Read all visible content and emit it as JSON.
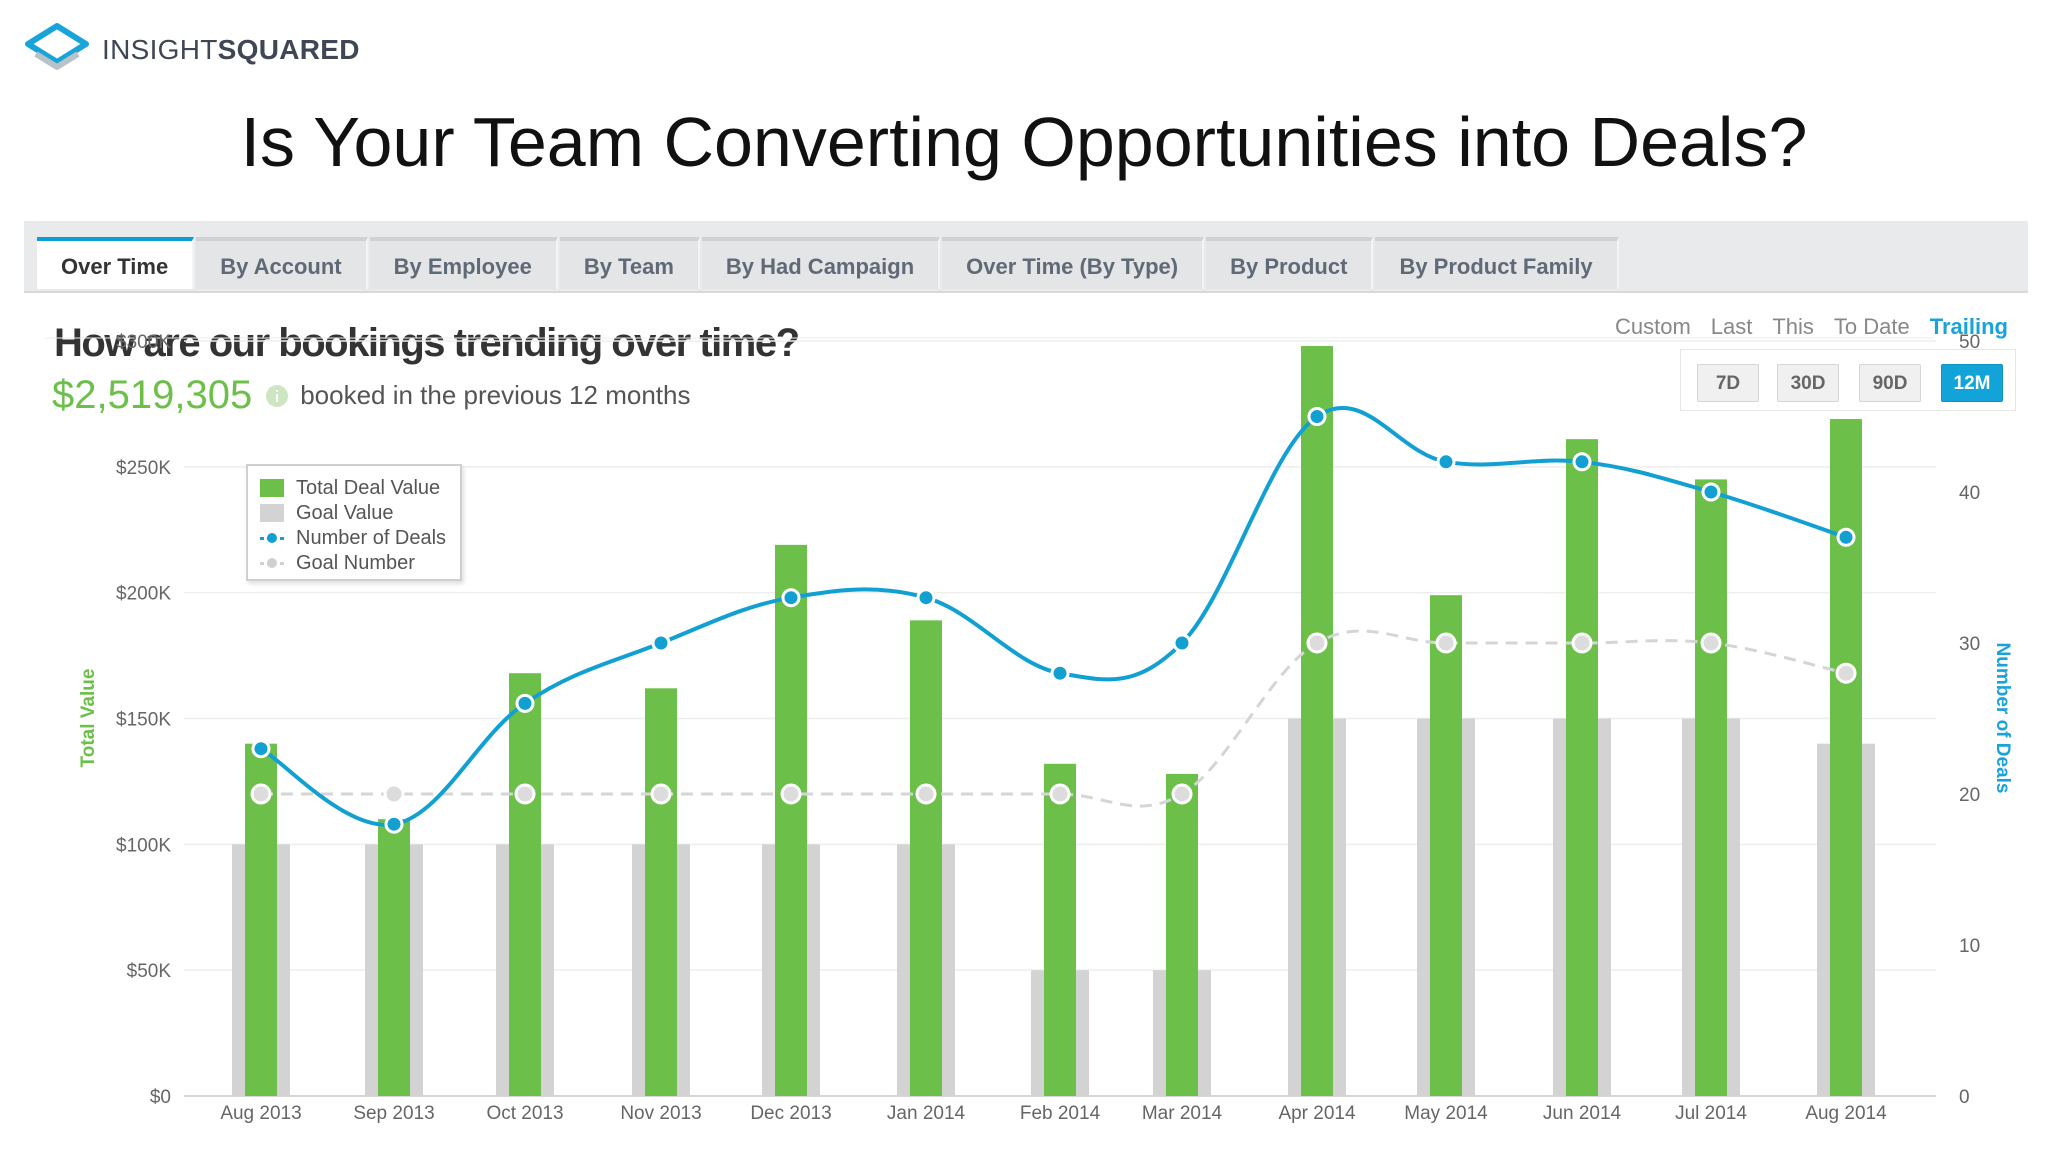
{
  "logo": {
    "text_light": "INSIGHT",
    "text_bold": "SQUARED"
  },
  "slide_title": "Is Your Team Converting Opportunities into Deals?",
  "tabs": [
    {
      "label": "Over Time",
      "active": true
    },
    {
      "label": "By Account"
    },
    {
      "label": "By Employee"
    },
    {
      "label": "By Team"
    },
    {
      "label": "By Had Campaign"
    },
    {
      "label": "Over Time (By Type)"
    },
    {
      "label": "By Product"
    },
    {
      "label": "By Product Family"
    }
  ],
  "report": {
    "question": "How are our bookings trending over time?",
    "total_value": "$2,519,305",
    "total_caption": "booked in the previous 12 months"
  },
  "range": {
    "modes": [
      "Custom",
      "Last",
      "This",
      "To Date",
      "Trailing"
    ],
    "active_mode": "Trailing",
    "buttons": [
      "7D",
      "30D",
      "90D",
      "12M"
    ],
    "active_button": "12M"
  },
  "colors": {
    "deal": "#6cc04a",
    "goal": "#d3d3d3",
    "deals_line": "#12a0d3",
    "goal_line": "#d5d5d5",
    "accent": "#12a3d8"
  },
  "chart_data": {
    "type": "bar",
    "title": "",
    "categories": [
      "Aug 2013",
      "Sep 2013",
      "Oct 2013",
      "Nov 2013",
      "Dec 2013",
      "Jan 2014",
      "Feb 2014",
      "Mar 2014",
      "Apr 2014",
      "May 2014",
      "Jun 2014",
      "Jul 2014",
      "Aug 2014"
    ],
    "ylabel": "Total Value",
    "y2label": "Number of Deals",
    "ylim": [
      0,
      300000
    ],
    "y2lim": [
      0,
      50
    ],
    "yticks": [
      "$0",
      "$50K",
      "$100K",
      "$150K",
      "$200K",
      "$250K",
      "$300K"
    ],
    "y2ticks": [
      "0",
      "10",
      "20",
      "30",
      "40",
      "50"
    ],
    "grid": true,
    "legend_position": "top-left",
    "series": [
      {
        "name": "Total Deal Value",
        "type": "bar",
        "axis": "left",
        "values": [
          140000,
          110000,
          168000,
          162000,
          219000,
          189000,
          132000,
          128000,
          298000,
          199000,
          261000,
          245000,
          269000
        ]
      },
      {
        "name": "Goal Value",
        "type": "bar",
        "axis": "left",
        "values": [
          100000,
          100000,
          100000,
          100000,
          100000,
          100000,
          50000,
          50000,
          150000,
          150000,
          150000,
          150000,
          140000
        ]
      },
      {
        "name": "Number of Deals",
        "type": "line",
        "axis": "right",
        "values": [
          23,
          18,
          26,
          30,
          33,
          33,
          28,
          30,
          45,
          42,
          42,
          40,
          37
        ]
      },
      {
        "name": "Goal Number",
        "type": "line",
        "axis": "right",
        "values": [
          20,
          20,
          20,
          20,
          20,
          20,
          20,
          20,
          30,
          30,
          30,
          30,
          28
        ]
      }
    ]
  }
}
